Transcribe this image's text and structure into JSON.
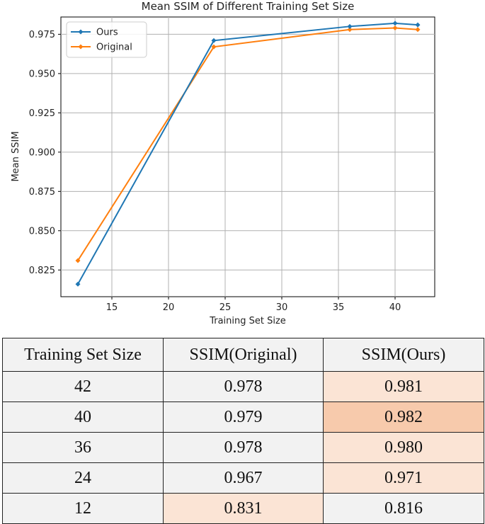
{
  "chart_data": {
    "type": "line",
    "title": "Mean SSIM of Different Training Set Size",
    "xlabel": "Training Set Size",
    "ylabel": "Mean SSIM",
    "x": [
      12,
      24,
      36,
      40,
      42
    ],
    "xlim": [
      10.5,
      43.5
    ],
    "ylim": [
      0.808,
      0.986
    ],
    "xticks": [
      15,
      20,
      25,
      30,
      35,
      40
    ],
    "yticks": [
      0.825,
      0.85,
      0.875,
      0.9,
      0.925,
      0.95,
      0.975
    ],
    "xtick_labels": [
      "15",
      "20",
      "25",
      "30",
      "35",
      "40"
    ],
    "ytick_labels": [
      "0.825",
      "0.850",
      "0.875",
      "0.900",
      "0.925",
      "0.950",
      "0.975"
    ],
    "grid": true,
    "legend_position": "top-left",
    "series": [
      {
        "name": "Ours",
        "color": "#1f77b4",
        "values": [
          0.816,
          0.971,
          0.98,
          0.982,
          0.981
        ]
      },
      {
        "name": "Original",
        "color": "#ff7f0e",
        "values": [
          0.831,
          0.967,
          0.978,
          0.979,
          0.978
        ]
      }
    ]
  },
  "table": {
    "headers": [
      "Training Set Size",
      "SSIM(Original)",
      "SSIM(Ours)"
    ],
    "rows": [
      {
        "size": "42",
        "original": "0.978",
        "ours": "0.981"
      },
      {
        "size": "40",
        "original": "0.979",
        "ours": "0.982"
      },
      {
        "size": "36",
        "original": "0.978",
        "ours": "0.980"
      },
      {
        "size": "24",
        "original": "0.967",
        "ours": "0.971"
      },
      {
        "size": "12",
        "original": "0.831",
        "ours": "0.816"
      }
    ],
    "highlights": [
      {
        "row": 0,
        "col": 2,
        "color": "#fbe4d5"
      },
      {
        "row": 1,
        "col": 2,
        "color": "#f7caac"
      },
      {
        "row": 2,
        "col": 2,
        "color": "#fbe4d5"
      },
      {
        "row": 3,
        "col": 2,
        "color": "#fbe4d5"
      },
      {
        "row": 4,
        "col": 1,
        "color": "#fbe4d5"
      }
    ],
    "base_color": "#f2f2f2"
  }
}
